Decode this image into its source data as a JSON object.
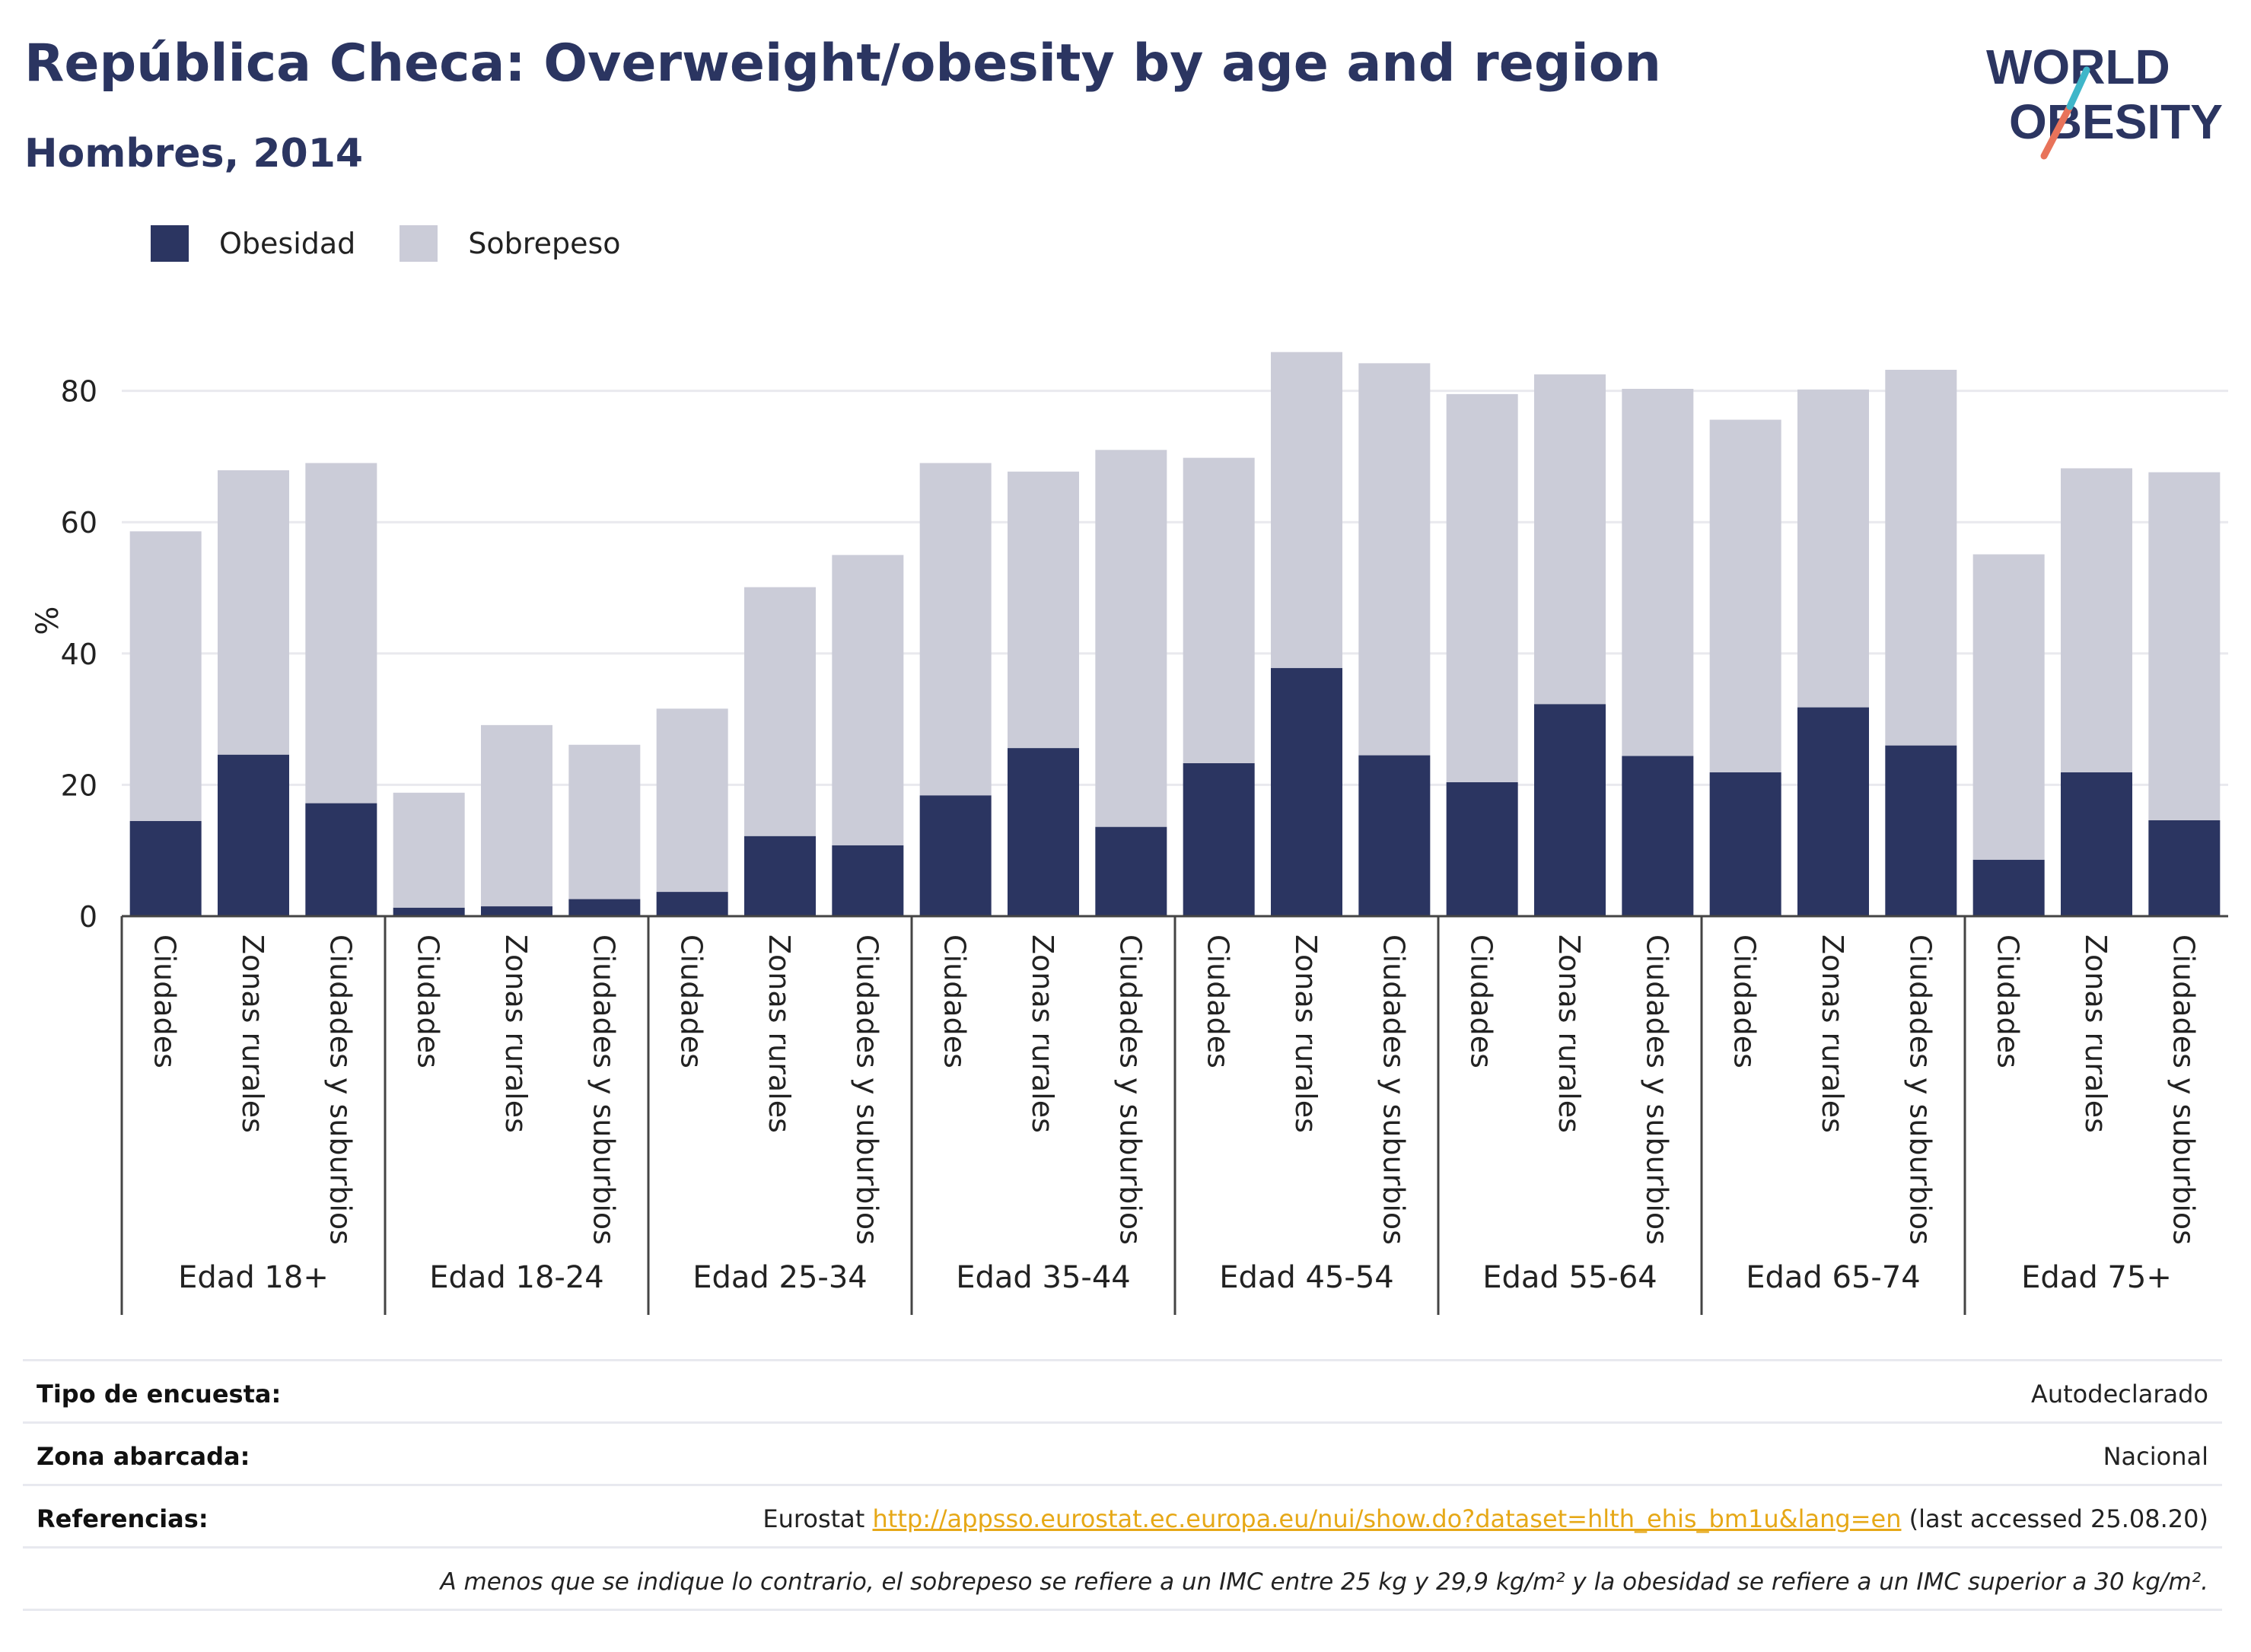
{
  "title": "República Checa: Overweight/obesity by age and region",
  "subtitle": "Hombres, 2014",
  "logo": {
    "line1": "WORLD",
    "line2": "OBESITY"
  },
  "colors": {
    "obesity": "#2b3561",
    "overweight": "#cbccd8",
    "title": "#2b3561",
    "link": "#e6a817",
    "grid": "#e9e9ee"
  },
  "chart_data": {
    "type": "bar",
    "stacked": true,
    "ylabel": "%",
    "ylim": [
      0,
      90
    ],
    "yticks": [
      0,
      20,
      40,
      60,
      80
    ],
    "grid": true,
    "legend_position": "top-left",
    "groups": [
      {
        "label": "Edad 18+",
        "categories": [
          "Ciudades",
          "Zonas rurales",
          "Ciudades y suburbios"
        ]
      },
      {
        "label": "Edad 18-24",
        "categories": [
          "Ciudades",
          "Zonas rurales",
          "Ciudades y suburbios"
        ]
      },
      {
        "label": "Edad 25-34",
        "categories": [
          "Ciudades",
          "Zonas rurales",
          "Ciudades y suburbios"
        ]
      },
      {
        "label": "Edad 35-44",
        "categories": [
          "Ciudades",
          "Zonas rurales",
          "Ciudades y suburbios"
        ]
      },
      {
        "label": "Edad 45-54",
        "categories": [
          "Ciudades",
          "Zonas rurales",
          "Ciudades y suburbios"
        ]
      },
      {
        "label": "Edad 55-64",
        "categories": [
          "Ciudades",
          "Zonas rurales",
          "Ciudades y suburbios"
        ]
      },
      {
        "label": "Edad 65-74",
        "categories": [
          "Ciudades",
          "Zonas rurales",
          "Ciudades y suburbios"
        ]
      },
      {
        "label": "Edad 75+",
        "categories": [
          "Ciudades",
          "Zonas rurales",
          "Ciudades y suburbios"
        ]
      }
    ],
    "series": [
      {
        "name": "Obesidad",
        "values": [
          14.5,
          24.6,
          17.2,
          1.3,
          1.5,
          2.6,
          3.7,
          12.2,
          10.8,
          18.4,
          25.6,
          13.6,
          23.3,
          37.8,
          24.5,
          20.4,
          32.3,
          24.4,
          21.9,
          31.8,
          26.0,
          8.6,
          21.9,
          14.6
        ]
      },
      {
        "name": "Sobrepeso",
        "values": [
          44.1,
          43.3,
          51.8,
          17.5,
          27.6,
          23.5,
          27.9,
          37.9,
          44.2,
          50.6,
          42.1,
          57.4,
          46.5,
          48.1,
          59.7,
          59.1,
          50.2,
          55.9,
          53.7,
          48.4,
          57.2,
          46.5,
          46.3,
          53.0
        ]
      }
    ]
  },
  "info": {
    "survey_label": "Tipo de encuesta:",
    "survey_value": "Autodeclarado",
    "area_label": "Zona abarcada:",
    "area_value": "Nacional",
    "refs_label": "Referencias:",
    "refs_prefix": "Eurostat ",
    "refs_link": "http://appsso.eurostat.ec.europa.eu/nui/show.do?dataset=hlth_ehis_bm1u&lang=en",
    "refs_suffix": " (last accessed 25.08.20)",
    "note": "A menos que se indique lo contrario, el sobrepeso se refiere a un IMC entre 25 kg y 29,9 kg/m² y la obesidad se refiere a un IMC superior a 30 kg/m²."
  }
}
